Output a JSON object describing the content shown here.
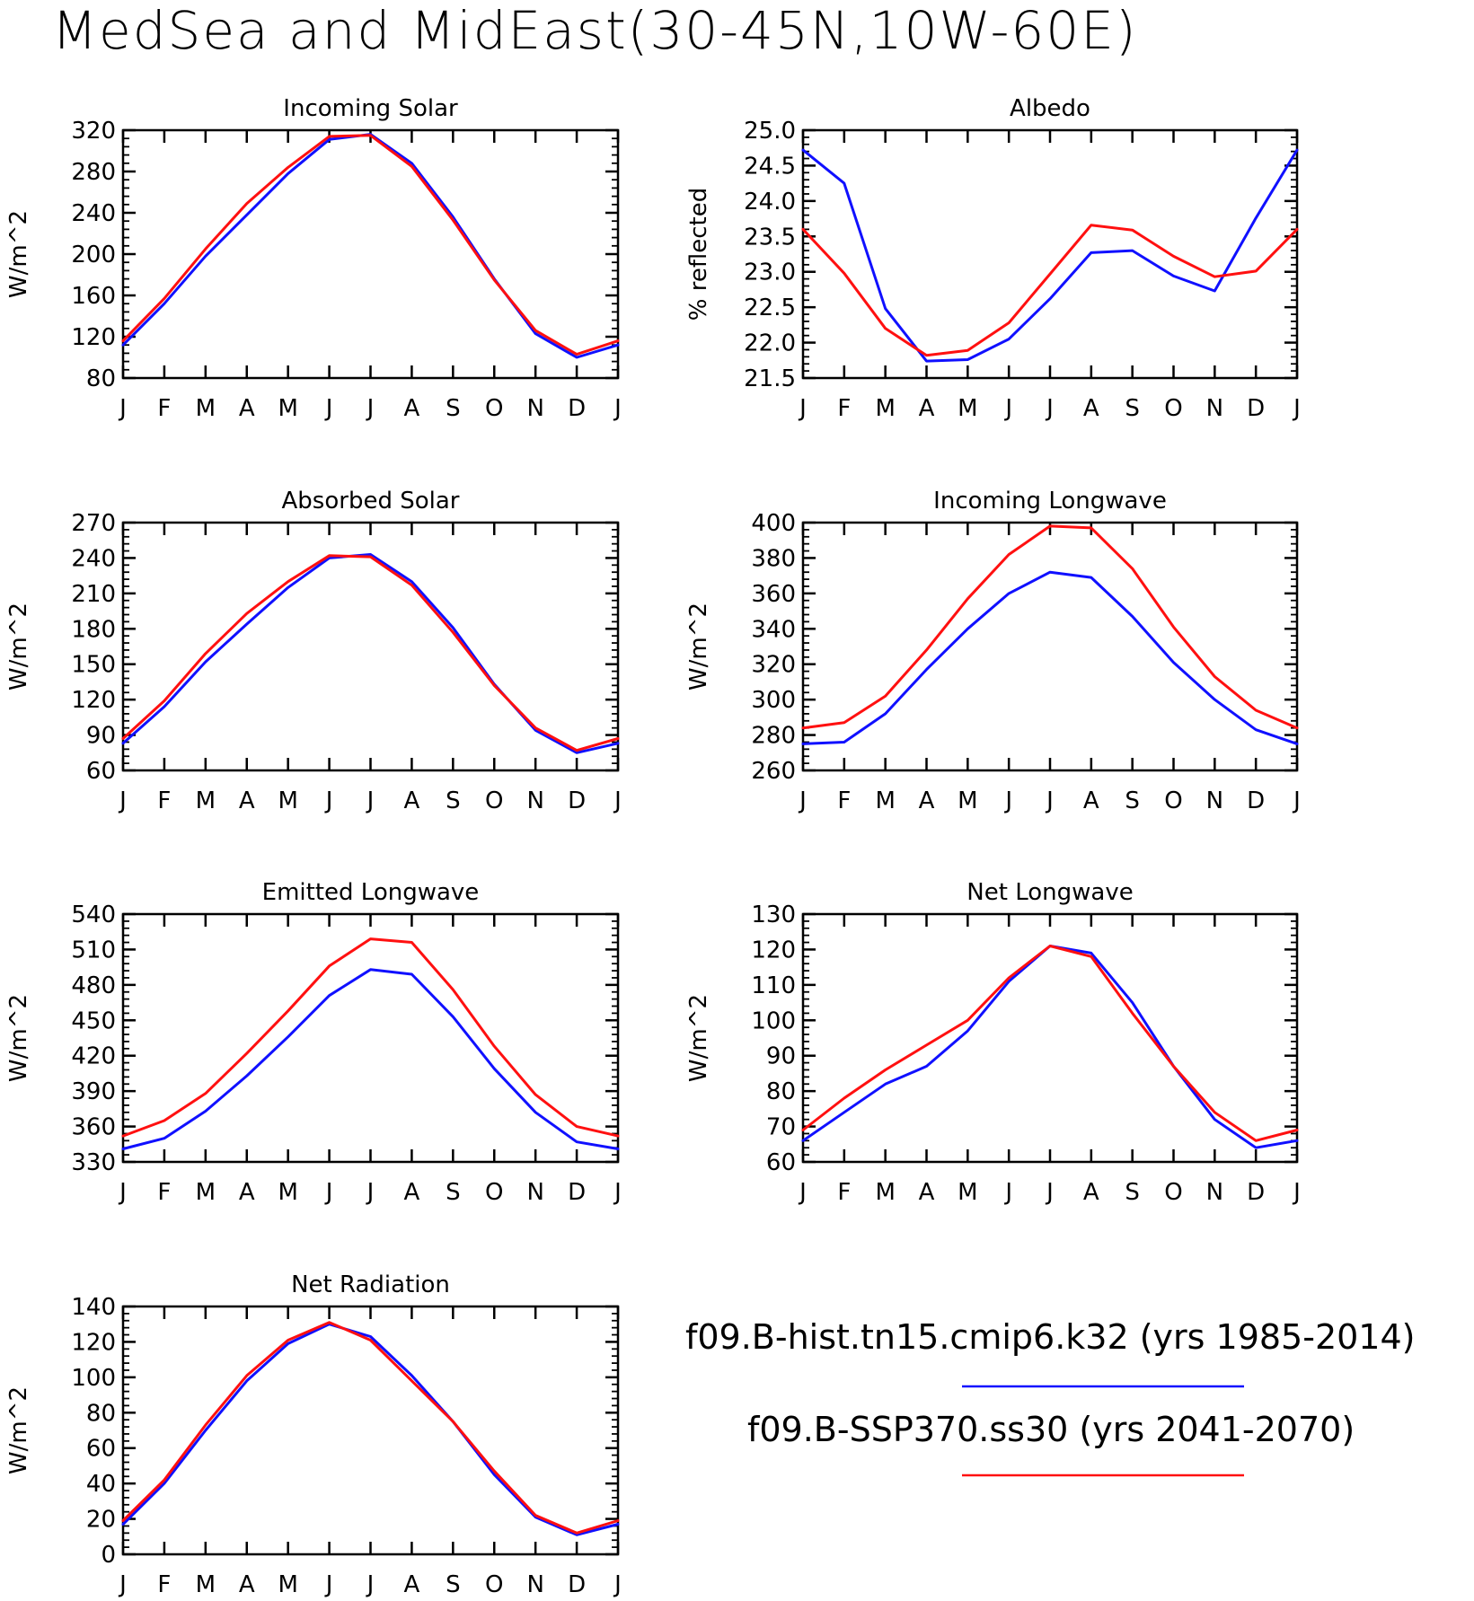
{
  "figure": {
    "title": "MedSea and MidEast(30-45N,10W-60E)"
  },
  "legend": {
    "items": [
      {
        "label": "f09.B-hist.tn15.cmip6.k32 (yrs 1985-2014)",
        "color": "#1010ff"
      },
      {
        "label": "f09.B-SSP370.ss30 (yrs 2041-2070)",
        "color": "#ff1010"
      }
    ]
  },
  "chart_data": [
    {
      "type": "line",
      "title": "Incoming Solar",
      "ylabel": "W/m^2",
      "ylim": [
        80,
        320
      ],
      "yticks": [
        80,
        120,
        160,
        200,
        240,
        280,
        320
      ],
      "x": [
        "J",
        "F",
        "M",
        "A",
        "M",
        "J",
        "J",
        "A",
        "S",
        "O",
        "N",
        "D",
        "J"
      ],
      "series": [
        {
          "name": "f09.B-hist.tn15.cmip6.k32 (yrs 1985-2014)",
          "color": "#1010ff",
          "values": [
            112,
            152,
            198,
            238,
            278,
            311,
            316,
            288,
            236,
            176,
            123,
            100,
            112
          ]
        },
        {
          "name": "f09.B-SSP370.ss30 (yrs 2041-2070)",
          "color": "#ff1010",
          "values": [
            116,
            157,
            205,
            249,
            284,
            314,
            315,
            285,
            233,
            175,
            126,
            103,
            116
          ]
        }
      ]
    },
    {
      "type": "line",
      "title": "Albedo",
      "ylabel": "% reflected",
      "ylim": [
        21.5,
        25.0
      ],
      "yticks": [
        "21.5",
        "22.0",
        "22.5",
        "23.0",
        "23.5",
        "24.0",
        "24.5",
        "25.0"
      ],
      "x": [
        "J",
        "F",
        "M",
        "A",
        "M",
        "J",
        "J",
        "A",
        "S",
        "O",
        "N",
        "D",
        "J"
      ],
      "series": [
        {
          "name": "f09.B-hist.tn15.cmip6.k32 (yrs 1985-2014)",
          "color": "#1010ff",
          "values": [
            24.72,
            24.25,
            22.48,
            21.74,
            21.76,
            22.05,
            22.62,
            23.27,
            23.3,
            22.94,
            22.73,
            23.76,
            24.72
          ]
        },
        {
          "name": "f09.B-SSP370.ss30 (yrs 2041-2070)",
          "color": "#ff1010",
          "values": [
            23.6,
            22.98,
            22.2,
            21.82,
            21.89,
            22.28,
            22.97,
            23.66,
            23.59,
            23.22,
            22.93,
            23.01,
            23.6
          ]
        }
      ]
    },
    {
      "type": "line",
      "title": "Absorbed Solar",
      "ylabel": "W/m^2",
      "ylim": [
        60,
        270
      ],
      "yticks": [
        60,
        90,
        120,
        150,
        180,
        210,
        240,
        270
      ],
      "x": [
        "J",
        "F",
        "M",
        "A",
        "M",
        "J",
        "J",
        "A",
        "S",
        "O",
        "N",
        "D",
        "J"
      ],
      "series": [
        {
          "name": "f09.B-hist.tn15.cmip6.k32 (yrs 1985-2014)",
          "color": "#1010ff",
          "values": [
            83,
            114,
            152,
            184,
            215,
            240,
            243,
            220,
            181,
            133,
            94,
            75,
            83
          ]
        },
        {
          "name": "f09.B-SSP370.ss30 (yrs 2041-2070)",
          "color": "#ff1010",
          "values": [
            87,
            119,
            159,
            193,
            220,
            242,
            241,
            217,
            177,
            132,
            96,
            77,
            87
          ]
        }
      ]
    },
    {
      "type": "line",
      "title": "Incoming Longwave",
      "ylabel": "W/m^2",
      "ylim": [
        260,
        400
      ],
      "yticks": [
        260,
        280,
        300,
        320,
        340,
        360,
        380,
        400
      ],
      "x": [
        "J",
        "F",
        "M",
        "A",
        "M",
        "J",
        "J",
        "A",
        "S",
        "O",
        "N",
        "D",
        "J"
      ],
      "series": [
        {
          "name": "f09.B-hist.tn15.cmip6.k32 (yrs 1985-2014)",
          "color": "#1010ff",
          "values": [
            275,
            276,
            292,
            317,
            340,
            360,
            372,
            369,
            347,
            321,
            300,
            283,
            275
          ]
        },
        {
          "name": "f09.B-SSP370.ss30 (yrs 2041-2070)",
          "color": "#ff1010",
          "values": [
            284,
            287,
            302,
            328,
            357,
            382,
            398,
            397,
            374,
            341,
            313,
            294,
            284
          ]
        }
      ]
    },
    {
      "type": "line",
      "title": "Emitted Longwave",
      "ylabel": "W/m^2",
      "ylim": [
        330,
        540
      ],
      "yticks": [
        330,
        360,
        390,
        420,
        450,
        480,
        510,
        540
      ],
      "x": [
        "J",
        "F",
        "M",
        "A",
        "M",
        "J",
        "J",
        "A",
        "S",
        "O",
        "N",
        "D",
        "J"
      ],
      "series": [
        {
          "name": "f09.B-hist.tn15.cmip6.k32 (yrs 1985-2014)",
          "color": "#1010ff",
          "values": [
            341,
            350,
            373,
            403,
            436,
            471,
            493,
            489,
            453,
            409,
            372,
            347,
            341
          ]
        },
        {
          "name": "f09.B-SSP370.ss30 (yrs 2041-2070)",
          "color": "#ff1010",
          "values": [
            352,
            365,
            388,
            422,
            458,
            496,
            519,
            516,
            476,
            428,
            387,
            360,
            352
          ]
        }
      ]
    },
    {
      "type": "line",
      "title": "Net Longwave",
      "ylabel": "W/m^2",
      "ylim": [
        60,
        130
      ],
      "yticks": [
        60,
        70,
        80,
        90,
        100,
        110,
        120,
        130
      ],
      "x": [
        "J",
        "F",
        "M",
        "A",
        "M",
        "J",
        "J",
        "A",
        "S",
        "O",
        "N",
        "D",
        "J"
      ],
      "series": [
        {
          "name": "f09.B-hist.tn15.cmip6.k32 (yrs 1985-2014)",
          "color": "#1010ff",
          "values": [
            66,
            74,
            82,
            87,
            97,
            111,
            121,
            119,
            105,
            87,
            72,
            64,
            66
          ]
        },
        {
          "name": "f09.B-SSP370.ss30 (yrs 2041-2070)",
          "color": "#ff1010",
          "values": [
            69,
            78,
            86,
            93,
            100,
            112,
            121,
            118,
            102,
            87,
            74,
            66,
            69
          ]
        }
      ]
    },
    {
      "type": "line",
      "title": "Net Radiation",
      "ylabel": "W/m^2",
      "ylim": [
        0,
        140
      ],
      "yticks": [
        0,
        20,
        40,
        60,
        80,
        100,
        120,
        140
      ],
      "x": [
        "J",
        "F",
        "M",
        "A",
        "M",
        "J",
        "J",
        "A",
        "S",
        "O",
        "N",
        "D",
        "J"
      ],
      "series": [
        {
          "name": "f09.B-hist.tn15.cmip6.k32 (yrs 1985-2014)",
          "color": "#1010ff",
          "values": [
            17,
            40,
            70,
            98,
            119,
            130,
            123,
            101,
            75,
            45,
            21,
            11,
            17
          ]
        },
        {
          "name": "f09.B-SSP370.ss30 (yrs 2041-2070)",
          "color": "#ff1010",
          "values": [
            19,
            42,
            73,
            101,
            121,
            131,
            121,
            98,
            75,
            47,
            22,
            12,
            19
          ]
        }
      ]
    }
  ]
}
